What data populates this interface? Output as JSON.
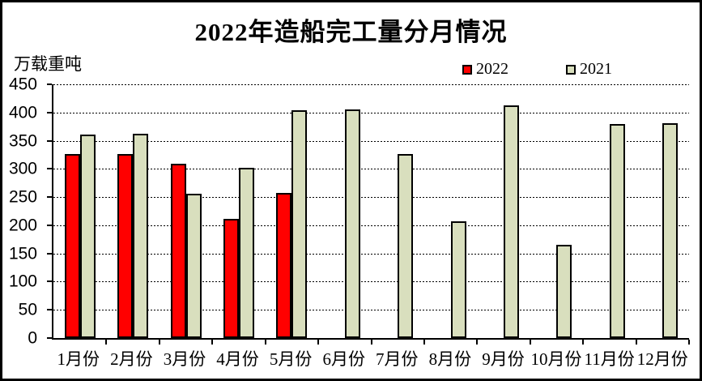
{
  "header": {
    "title": "2022年造船完工量分月情况"
  },
  "axis": {
    "unit_label": "万载重吨",
    "y_ticks": [
      450,
      400,
      350,
      300,
      250,
      200,
      150,
      100,
      50,
      0
    ]
  },
  "legend": {
    "items": [
      {
        "label": "2022",
        "color": "#ff0000"
      },
      {
        "label": "2021",
        "color": "#d9dfbe"
      }
    ]
  },
  "chart_data": {
    "type": "bar",
    "title": "2022年造船完工量分月情况",
    "ylabel": "万载重吨",
    "xlabel": "",
    "categories": [
      "1月份",
      "2月份",
      "3月份",
      "4月份",
      "5月份",
      "6月份",
      "7月份",
      "8月份",
      "9月份",
      "10月份",
      "11月份",
      "12月份"
    ],
    "series": [
      {
        "name": "2022",
        "color": "#ff0000",
        "values": [
          326,
          327,
          309,
          211,
          257,
          null,
          null,
          null,
          null,
          null,
          null,
          null
        ]
      },
      {
        "name": "2021",
        "color": "#d9dfbe",
        "values": [
          361,
          362,
          256,
          302,
          404,
          405,
          326,
          207,
          412,
          166,
          380,
          381
        ]
      }
    ],
    "ylim": [
      0,
      450
    ],
    "ytick_step": 50,
    "grid": "horizontal-dashed",
    "legend_position": "top-right",
    "bar_outline": "#000000"
  }
}
